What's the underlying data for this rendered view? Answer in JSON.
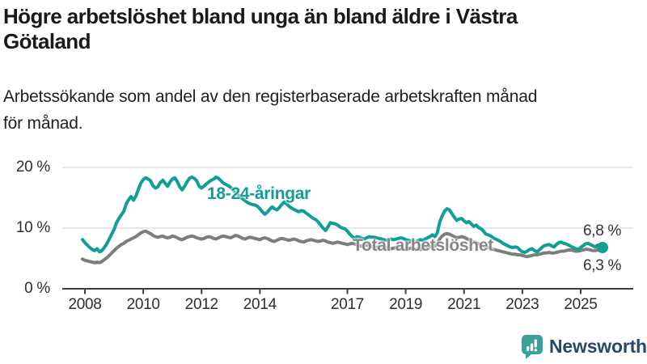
{
  "header": {
    "title_lines": [
      "Högre arbetslöshet bland unga än bland äldre i Västra",
      "Götaland"
    ],
    "subtitle_lines": [
      "Arbetssökande som andel av den registerbaserade arbetskraften månad",
      "för månad."
    ]
  },
  "chart_data": {
    "type": "line",
    "title": "Högre arbetslöshet bland unga än bland äldre i Västra Götaland",
    "subtitle": "Arbetssökande som andel av den registerbaserade arbetskraften månad för månad.",
    "unit": "%",
    "x_interval": "monthly",
    "x_start": "2008-01",
    "x_end": "2025-11",
    "x_ticks": [
      2008,
      2010,
      2012,
      2014,
      2017,
      2019,
      2021,
      2023,
      2025
    ],
    "ylim": [
      0,
      21.5
    ],
    "y_ticks": [
      {
        "value": 0,
        "label": "0 %"
      },
      {
        "value": 10,
        "label": "10 %"
      },
      {
        "value": 20,
        "label": "20 %"
      }
    ],
    "grid": "horizontal",
    "legend_position": "inline-labels",
    "series": [
      {
        "name": "18-24-åringar",
        "color": "#119E94",
        "end_label": "6,8 %",
        "end_dot": true,
        "values": [
          8.1,
          7.6,
          7.2,
          6.8,
          6.5,
          6.3,
          6.6,
          6.1,
          6.3,
          6.8,
          7.4,
          8.2,
          9.0,
          9.8,
          10.9,
          11.6,
          12.2,
          12.8,
          14.0,
          14.7,
          15.2,
          14.6,
          15.3,
          16.4,
          17.4,
          18.0,
          18.3,
          18.1,
          17.8,
          17.0,
          16.6,
          16.8,
          17.5,
          17.9,
          17.4,
          16.9,
          17.6,
          18.1,
          18.3,
          17.7,
          16.8,
          16.3,
          16.9,
          17.6,
          18.2,
          18.4,
          18.2,
          17.8,
          16.9,
          16.6,
          16.9,
          17.3,
          17.6,
          17.9,
          18.1,
          18.4,
          18.2,
          17.8,
          17.4,
          17.2,
          17.0,
          16.7,
          16.3,
          15.9,
          15.5,
          15.1,
          14.8,
          14.5,
          14.2,
          14.0,
          13.9,
          13.8,
          13.6,
          13.2,
          12.7,
          12.3,
          12.6,
          13.1,
          13.5,
          13.2,
          13.0,
          13.4,
          13.9,
          14.3,
          14.0,
          13.6,
          13.3,
          13.1,
          12.9,
          12.7,
          12.9,
          12.8,
          12.5,
          12.2,
          11.9,
          11.6,
          11.4,
          11.0,
          10.5,
          10.0,
          9.6,
          10.2,
          10.9,
          10.8,
          10.7,
          10.5,
          10.2,
          10.0,
          9.9,
          9.5,
          9.0,
          8.6,
          8.3,
          8.6,
          8.5,
          8.3,
          8.2,
          8.4,
          8.6,
          8.5,
          8.5,
          8.4,
          8.3,
          8.2,
          8.1,
          8.0,
          8.1,
          8.2,
          8.1,
          8.2,
          8.3,
          8.4,
          8.3,
          8.1,
          8.0,
          7.9,
          7.8,
          7.7,
          7.9,
          8.1,
          8.0,
          8.2,
          8.4,
          8.6,
          8.9,
          8.6,
          9.2,
          11.0,
          12.0,
          12.8,
          13.2,
          13.0,
          12.4,
          11.8,
          11.3,
          11.5,
          11.6,
          11.2,
          10.9,
          11.1,
          10.7,
          10.3,
          10.5,
          10.1,
          9.9,
          9.5,
          9.0,
          8.9,
          8.7,
          8.4,
          8.2,
          8.0,
          7.8,
          7.5,
          7.3,
          7.1,
          6.9,
          6.8,
          6.9,
          6.8,
          6.4,
          6.1,
          6.0,
          6.2,
          6.5,
          6.6,
          6.3,
          6.1,
          6.4,
          6.8,
          7.1,
          7.2,
          7.3,
          7.1,
          6.9,
          7.3,
          7.6,
          7.7,
          7.5,
          7.4,
          7.2,
          7.0,
          6.8,
          6.6,
          6.5,
          6.8,
          7.1,
          7.4,
          7.5,
          7.3,
          7.1,
          6.9,
          7.2,
          7.0,
          6.8
        ]
      },
      {
        "name": "Total arbetslöshet",
        "color": "#7D7D7D",
        "end_label": "6,3 %",
        "end_dot": false,
        "values": [
          4.9,
          4.7,
          4.6,
          4.5,
          4.4,
          4.3,
          4.4,
          4.3,
          4.5,
          4.8,
          5.1,
          5.5,
          5.9,
          6.3,
          6.7,
          7.0,
          7.3,
          7.5,
          7.8,
          8.0,
          8.2,
          8.4,
          8.6,
          8.9,
          9.2,
          9.4,
          9.5,
          9.3,
          9.1,
          8.8,
          8.6,
          8.5,
          8.6,
          8.7,
          8.5,
          8.4,
          8.5,
          8.7,
          8.6,
          8.4,
          8.2,
          8.1,
          8.3,
          8.5,
          8.6,
          8.7,
          8.6,
          8.4,
          8.3,
          8.2,
          8.3,
          8.5,
          8.6,
          8.5,
          8.3,
          8.2,
          8.4,
          8.6,
          8.7,
          8.6,
          8.5,
          8.4,
          8.6,
          8.8,
          8.7,
          8.5,
          8.3,
          8.2,
          8.4,
          8.5,
          8.4,
          8.3,
          8.2,
          8.1,
          8.3,
          8.4,
          8.3,
          8.1,
          7.9,
          7.8,
          8.0,
          8.2,
          8.3,
          8.2,
          8.1,
          8.0,
          8.1,
          8.2,
          8.1,
          7.9,
          7.8,
          7.7,
          7.9,
          8.0,
          8.1,
          8.0,
          7.9,
          7.8,
          7.9,
          8.0,
          7.9,
          7.7,
          7.6,
          7.5,
          7.6,
          7.7,
          7.6,
          7.5,
          7.4,
          7.3,
          7.4,
          7.5,
          7.4,
          7.2,
          7.1,
          7.0,
          7.1,
          7.2,
          7.1,
          7.0,
          6.9,
          6.8,
          6.9,
          7.0,
          6.9,
          6.8,
          6.7,
          6.6,
          6.7,
          6.8,
          6.7,
          6.6,
          6.6,
          6.5,
          6.6,
          6.7,
          6.6,
          6.5,
          6.6,
          6.5,
          6.6,
          6.7,
          6.8,
          6.9,
          7.0,
          7.0,
          7.4,
          8.2,
          8.7,
          9.0,
          9.1,
          9.0,
          8.8,
          8.6,
          8.4,
          8.5,
          8.6,
          8.5,
          8.3,
          8.1,
          7.9,
          7.7,
          7.6,
          7.4,
          7.2,
          7.0,
          6.9,
          6.8,
          6.7,
          6.5,
          6.4,
          6.3,
          6.2,
          6.1,
          6.0,
          5.9,
          5.8,
          5.7,
          5.7,
          5.6,
          5.6,
          5.5,
          5.4,
          5.3,
          5.4,
          5.5,
          5.6,
          5.6,
          5.7,
          5.8,
          5.9,
          5.9,
          6.0,
          5.9,
          5.9,
          6.0,
          6.1,
          6.2,
          6.2,
          6.3,
          6.4,
          6.4,
          6.3,
          6.2,
          6.2,
          6.3,
          6.4,
          6.5,
          6.5,
          6.4,
          6.3,
          6.3,
          6.4,
          6.3,
          6.3
        ]
      }
    ]
  },
  "footer": {
    "brand": "Newsworthy",
    "brand_color": "#26486B",
    "icon_color": "#3D9F99"
  }
}
